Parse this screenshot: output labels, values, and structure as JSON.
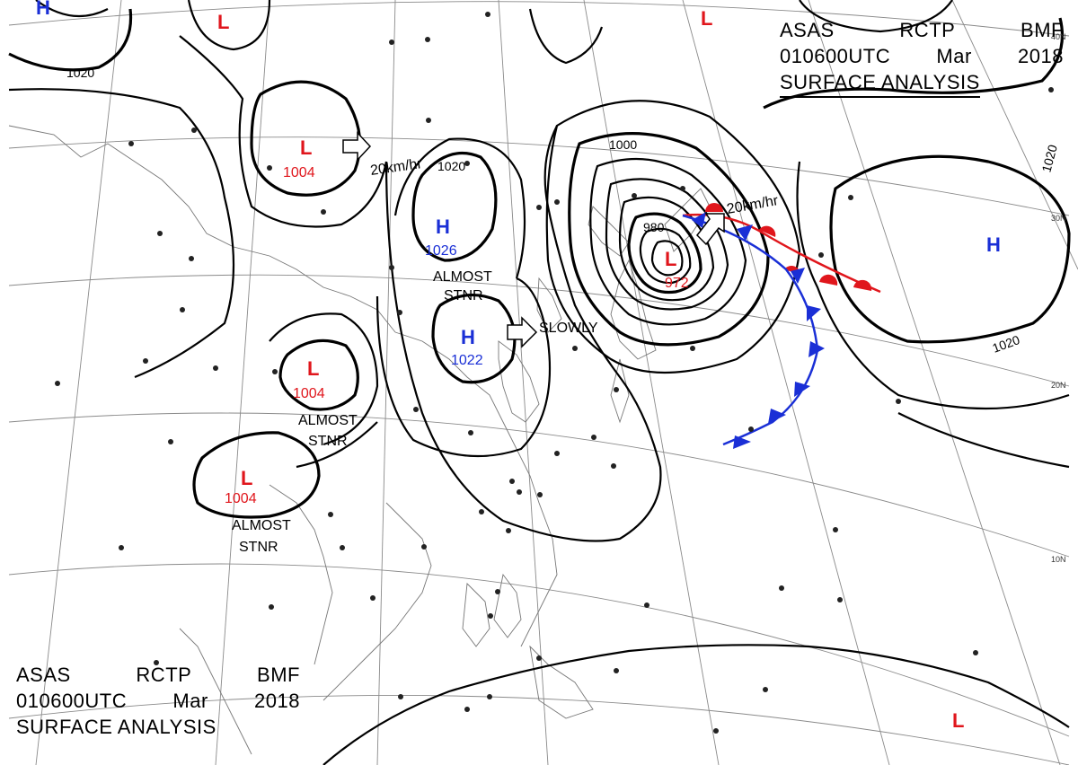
{
  "header_top": {
    "agency": "ASAS",
    "station": "RCTP",
    "code": "BMF",
    "time": "010600UTC",
    "month": "Mar",
    "year": "2018",
    "title": "SURFACE ANALYSIS"
  },
  "header_bottom": {
    "agency": "ASAS",
    "station": "RCTP",
    "code": "BMF",
    "time": "010600UTC",
    "month": "Mar",
    "year": "2018",
    "title": "SURFACE ANALYSIS"
  },
  "latitudes": [
    "40N",
    "30N",
    "20N",
    "10N"
  ],
  "pressure_centers": [
    {
      "kind": "H",
      "letter": "H",
      "value": ""
    },
    {
      "kind": "L",
      "letter": "L",
      "value": ""
    },
    {
      "kind": "L",
      "letter": "L",
      "value": "1004"
    },
    {
      "kind": "H",
      "letter": "H",
      "value": "1026"
    },
    {
      "kind": "H",
      "letter": "H",
      "value": "1022"
    },
    {
      "kind": "L",
      "letter": "L",
      "value": "972"
    },
    {
      "kind": "L",
      "letter": "L",
      "value": "1004"
    },
    {
      "kind": "L",
      "letter": "L",
      "value": "1004"
    },
    {
      "kind": "L",
      "letter": "L",
      "value": ""
    },
    {
      "kind": "H",
      "letter": "H",
      "value": ""
    },
    {
      "kind": "L",
      "letter": "L",
      "value": ""
    }
  ],
  "isobar_labels": [
    "1020",
    "1020",
    "1000",
    "980",
    "1020",
    "1020"
  ],
  "motion_labels": [
    "20km/hr",
    "20km/hr",
    "SLOWLY"
  ],
  "stationary_labels": [
    [
      "ALMOST",
      "STNR"
    ],
    [
      "ALMOST",
      "STNR"
    ],
    [
      "ALMOST",
      "STNR"
    ]
  ],
  "colors": {
    "high": "#1a2fd6",
    "low": "#e0161c",
    "warm_front": "#e0161c",
    "cold_front": "#1a2fd6",
    "isobar": "#000000",
    "graticule": "#8a8a8a"
  }
}
